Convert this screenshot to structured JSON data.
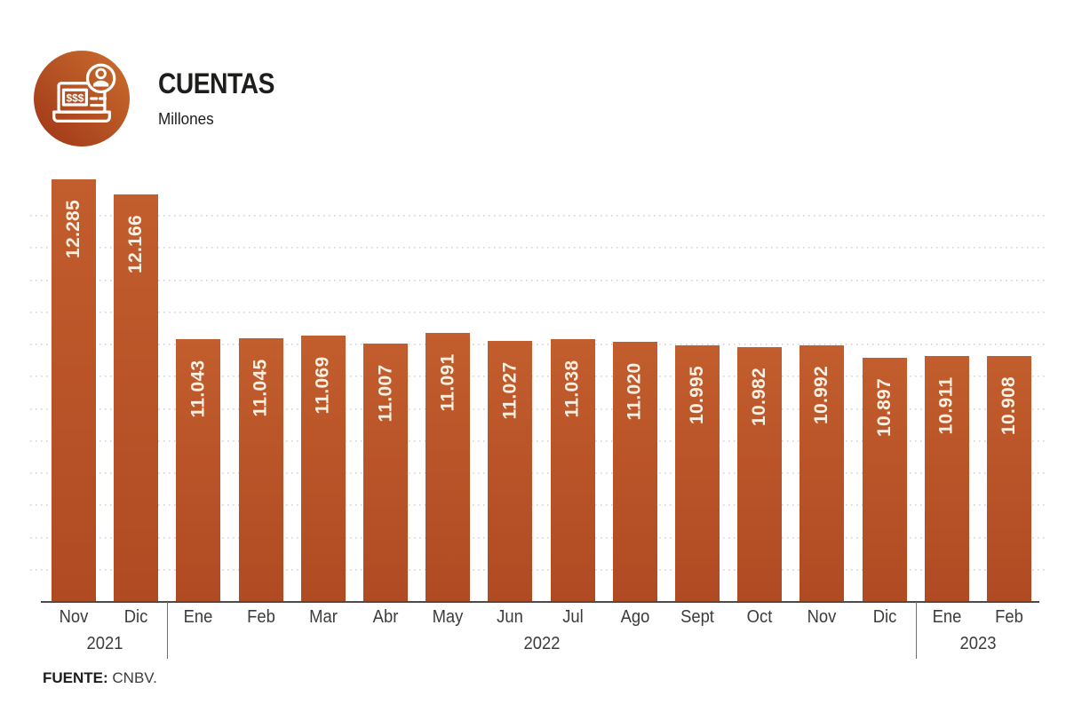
{
  "header": {
    "title": "CUENTAS",
    "subtitle": "Millones",
    "icon_name": "accounts-money-card-icon",
    "icon_dollar_text": "$$$"
  },
  "footer": {
    "source_label": "FUENTE:",
    "source_value": "CNBV."
  },
  "chart_data": {
    "type": "bar",
    "title": "CUENTAS",
    "ylabel": "Millones",
    "xlabel": "",
    "categories": [
      "Nov",
      "Dic",
      "Ene",
      "Feb",
      "Mar",
      "Abr",
      "May",
      "Jun",
      "Jul",
      "Ago",
      "Sept",
      "Oct",
      "Nov",
      "Dic",
      "Ene",
      "Feb"
    ],
    "values": [
      12.285,
      12.166,
      11.043,
      11.045,
      11.069,
      11.007,
      11.091,
      11.027,
      11.038,
      11.02,
      10.995,
      10.982,
      10.992,
      10.897,
      10.911,
      10.908
    ],
    "value_labels": [
      "12.285",
      "12.166",
      "11.043",
      "11.045",
      "11.069",
      "11.007",
      "11.091",
      "11.027",
      "11.038",
      "11.020",
      "10.995",
      "10.982",
      "10.992",
      "10.897",
      "10.911",
      "10.908"
    ],
    "year_groups": [
      {
        "label": "2021",
        "start": 0,
        "end": 1
      },
      {
        "label": "2022",
        "start": 2,
        "end": 13
      },
      {
        "label": "2023",
        "start": 14,
        "end": 15
      }
    ],
    "ylim": [
      9.0,
      12.5
    ],
    "grid": true,
    "gridline_step": 0.25,
    "legend_position": "none",
    "source": "FUENTE: CNBV.",
    "colors": {
      "bar_top": "#c25d2d",
      "bar_bottom": "#b04a23",
      "bar_value_text": "#f8f0e3",
      "axis": "#4b4b4a",
      "grid": "#d2d2d2",
      "tick_text": "#3c3c3b",
      "divider": "#6f6f6e",
      "title_text": "#1d1d1b",
      "icon_light": "#c86a2c",
      "icon_dark": "#a23a1a"
    }
  }
}
